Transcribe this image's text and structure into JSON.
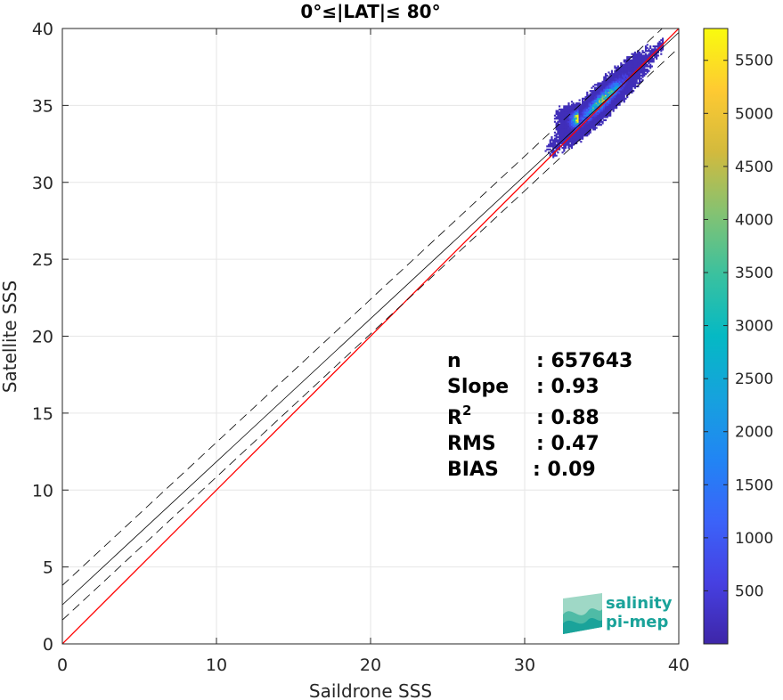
{
  "chart_data": {
    "type": "heatmap",
    "title": "0°≤|LAT|≤ 80°",
    "xlabel": "Saildrone SSS",
    "ylabel": "Satellite SSS",
    "xlim": [
      0,
      40
    ],
    "ylim": [
      0,
      40
    ],
    "xticks": [
      "0",
      "10",
      "20",
      "30",
      "40"
    ],
    "yticks": [
      "0",
      "5",
      "10",
      "15",
      "20",
      "25",
      "30",
      "35",
      "40"
    ],
    "grid": true,
    "colorbar": {
      "min": 0,
      "max": 5800,
      "ticks": [
        "500",
        "1000",
        "1500",
        "2000",
        "2500",
        "3000",
        "3500",
        "4000",
        "4500",
        "5000",
        "5500"
      ],
      "tick_values": [
        500,
        1000,
        1500,
        2000,
        2500,
        3000,
        3500,
        4000,
        4500,
        5000,
        5500
      ],
      "colormap": "parula"
    },
    "density_cloud": {
      "x_range": [
        28,
        39
      ],
      "y_range": [
        31,
        39.5
      ],
      "peak_at": [
        35,
        35.3
      ],
      "peak_count": 5800
    },
    "lines": [
      {
        "name": "one-to-one",
        "color": "#ff0000",
        "style": "solid",
        "slope": 1.0,
        "intercept": 0.0
      },
      {
        "name": "regression",
        "color": "#000000",
        "style": "solid",
        "slope": 0.93,
        "intercept": 2.54
      },
      {
        "name": "upper-bound",
        "color": "#000000",
        "style": "dashed",
        "slope": 0.93,
        "intercept": 3.8
      },
      {
        "name": "lower-bound",
        "color": "#000000",
        "style": "dashed",
        "slope": 0.93,
        "intercept": 1.55
      }
    ],
    "stats": [
      {
        "label": "n",
        "value": ": 657643"
      },
      {
        "label": "Slope",
        "value": ": 0.93"
      },
      {
        "label": "R",
        "sup": "2",
        "value": ": 0.88"
      },
      {
        "label": "RMS",
        "value": ": 0.47"
      },
      {
        "label": "BIAS",
        "value": ": 0.09"
      }
    ]
  },
  "logo": {
    "line1": "salinity",
    "line2": "pi-mep",
    "color": "#1aa39a"
  }
}
